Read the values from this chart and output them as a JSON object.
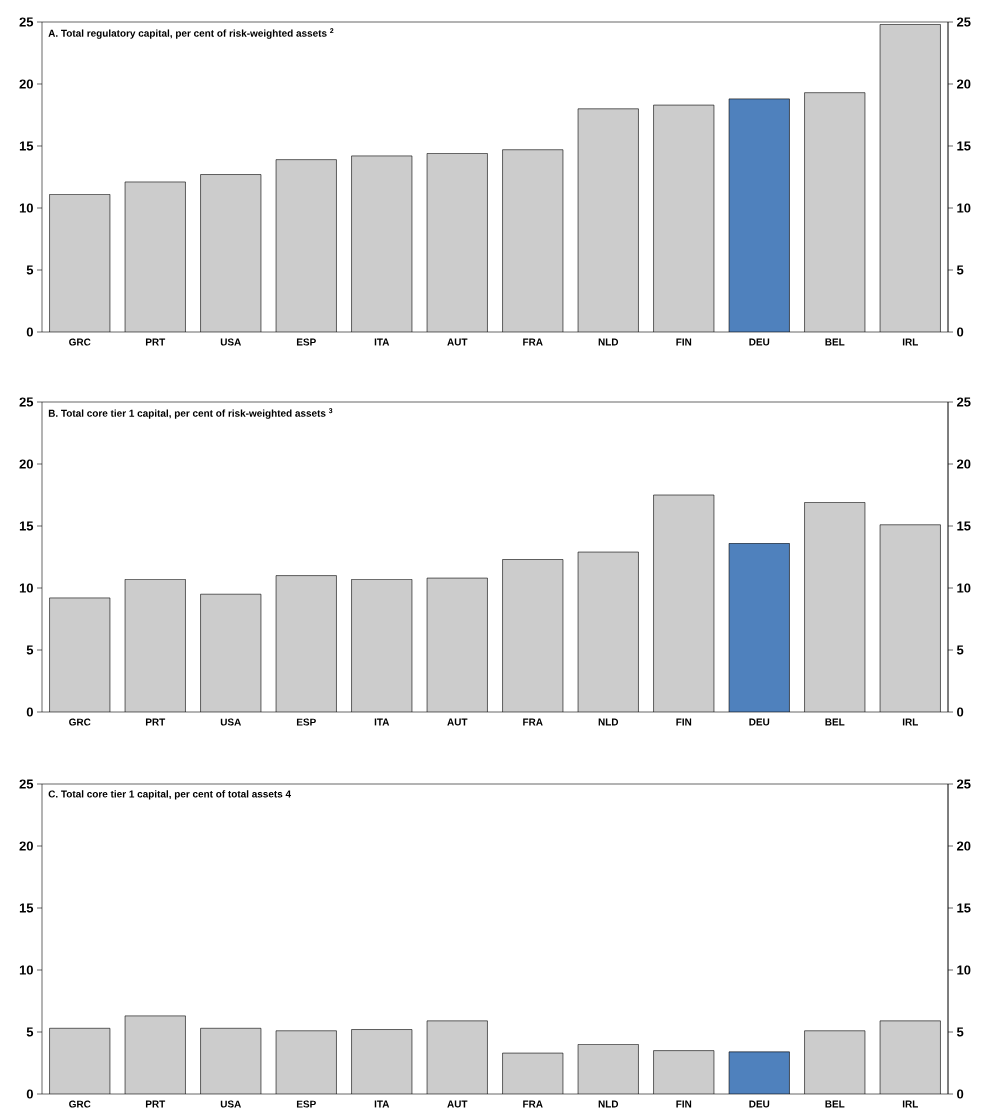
{
  "chart_data": [
    {
      "type": "bar",
      "title": "A. Total regulatory capital, per cent of risk-weighted assets $^{2}$",
      "categories": [
        "GRC",
        "PRT",
        "USA",
        "ESP",
        "ITA",
        "AUT",
        "FRA",
        "NLD",
        "FIN",
        "**DEU**",
        "BEL",
        "IRL"
      ],
      "values": [
        11.1,
        12.1,
        12.7,
        13.9,
        14.2,
        14.4,
        14.7,
        18.0,
        18.3,
        18.8,
        19.3,
        24.8
      ],
      "colors": [
        "#cccccc",
        "#cccccc",
        "#cccccc",
        "#cccccc",
        "#cccccc",
        "#cccccc",
        "#cccccc",
        "#cccccc",
        "#cccccc",
        "#4f81bd",
        "#cccccc",
        "#cccccc"
      ],
      "ylim": [
        0,
        25
      ],
      "yticks": [
        0,
        5,
        10,
        15,
        20,
        25
      ],
      "y2lim": [
        0,
        25
      ],
      "y2ticks": [
        0,
        5,
        10,
        15,
        20,
        25
      ],
      "grid": false
    },
    {
      "type": "bar",
      "title": "B. Total core tier 1 capital, per cent of risk-weighted assets $^{3}$",
      "categories": [
        "GRC",
        "PRT",
        "USA",
        "ESP",
        "ITA",
        "AUT",
        "FRA",
        "NLD",
        "FIN",
        "**DEU**",
        "BEL",
        "IRL"
      ],
      "values": [
        9.2,
        10.7,
        9.5,
        11.0,
        10.7,
        10.8,
        12.3,
        12.9,
        17.5,
        13.6,
        16.9,
        15.1
      ],
      "colors": [
        "#cccccc",
        "#cccccc",
        "#cccccc",
        "#cccccc",
        "#cccccc",
        "#cccccc",
        "#cccccc",
        "#cccccc",
        "#cccccc",
        "#4f81bd",
        "#cccccc",
        "#cccccc"
      ],
      "ylim": [
        0,
        25
      ],
      "yticks": [
        0,
        5,
        10,
        15,
        20,
        25
      ],
      "y2lim": [
        0,
        25
      ],
      "y2ticks": [
        0,
        5,
        10,
        15,
        20,
        25
      ],
      "grid": false
    },
    {
      "type": "bar",
      "title": "C. Total core tier 1 capital, per cent of total assets 4",
      "categories": [
        "GRC",
        "PRT",
        "USA",
        "ESP",
        "ITA",
        "AUT",
        "FRA",
        "NLD",
        "FIN",
        "**DEU**",
        "BEL",
        "IRL"
      ],
      "values": [
        5.3,
        6.3,
        5.3,
        5.1,
        5.2,
        5.9,
        3.3,
        4.0,
        3.5,
        3.4,
        5.1,
        5.9
      ],
      "colors": [
        "#cccccc",
        "#cccccc",
        "#cccccc",
        "#cccccc",
        "#cccccc",
        "#cccccc",
        "#cccccc",
        "#cccccc",
        "#cccccc",
        "#4f81bd",
        "#cccccc",
        "#cccccc"
      ],
      "ylim": [
        0,
        25
      ],
      "yticks": [
        0,
        5,
        10,
        15,
        20,
        25
      ],
      "y2lim": [
        0,
        25
      ],
      "y2ticks": [
        0,
        5,
        10,
        15,
        20,
        25
      ],
      "grid": false
    }
  ]
}
